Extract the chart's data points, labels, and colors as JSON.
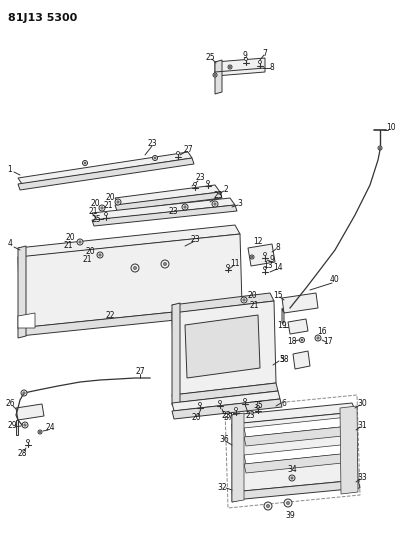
{
  "title": "81J13 5300",
  "bg_color": "#ffffff",
  "lc": "#333333",
  "lw": 0.7,
  "fs": 5.5
}
